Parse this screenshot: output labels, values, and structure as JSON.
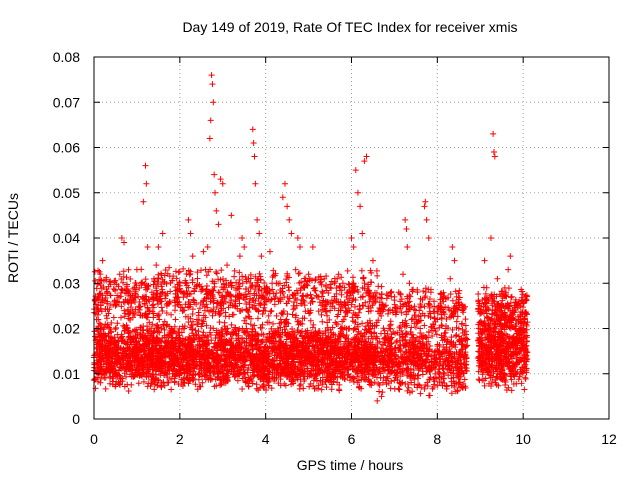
{
  "chart_data": {
    "type": "scatter",
    "title": "Day 149 of 2019, Rate Of TEC Index for receiver xmis",
    "xlabel": "GPS time / hours",
    "ylabel": "ROTI / TECUs",
    "xlim": [
      0,
      12
    ],
    "ylim": [
      0,
      0.08
    ],
    "xticks": [
      0,
      2,
      4,
      6,
      8,
      10,
      12
    ],
    "yticks": [
      0,
      0.01,
      0.02,
      0.03,
      0.04,
      0.05,
      0.06,
      0.07,
      0.08
    ],
    "xtick_labels": [
      "0",
      "2",
      "4",
      "6",
      "8",
      "10",
      "12"
    ],
    "ytick_labels": [
      "0",
      "0.01",
      "0.02",
      "0.03",
      "0.04",
      "0.05",
      "0.06",
      "0.07",
      "0.08"
    ],
    "grid": true,
    "marker": "+",
    "color": "#ff0000",
    "series": [
      {
        "name": "ROTI",
        "points": [
          [
            0.05,
            0.012
          ],
          [
            0.1,
            0.022
          ],
          [
            0.15,
            0.008
          ],
          [
            0.2,
            0.035
          ],
          [
            0.25,
            0.015
          ],
          [
            0.3,
            0.028
          ],
          [
            0.35,
            0.011
          ],
          [
            0.4,
            0.018
          ],
          [
            0.45,
            0.009
          ],
          [
            0.5,
            0.025
          ],
          [
            0.55,
            0.013
          ],
          [
            0.6,
            0.032
          ],
          [
            0.65,
            0.04
          ],
          [
            0.7,
            0.039
          ],
          [
            0.75,
            0.02
          ],
          [
            0.8,
            0.014
          ],
          [
            0.85,
            0.027
          ],
          [
            0.9,
            0.01
          ],
          [
            0.95,
            0.023
          ],
          [
            1.0,
            0.033
          ],
          [
            1.05,
            0.016
          ],
          [
            1.1,
            0.03
          ],
          [
            1.15,
            0.048
          ],
          [
            1.2,
            0.056
          ],
          [
            1.22,
            0.052
          ],
          [
            1.25,
            0.038
          ],
          [
            1.3,
            0.012
          ],
          [
            1.35,
            0.028
          ],
          [
            1.4,
            0.031
          ],
          [
            1.45,
            0.034
          ],
          [
            1.5,
            0.038
          ],
          [
            1.55,
            0.026
          ],
          [
            1.6,
            0.041
          ],
          [
            1.65,
            0.018
          ],
          [
            1.7,
            0.025
          ],
          [
            1.75,
            0.012
          ],
          [
            1.8,
            0.02
          ],
          [
            1.85,
            0.015
          ],
          [
            1.9,
            0.022
          ],
          [
            1.95,
            0.01
          ],
          [
            2.0,
            0.017
          ],
          [
            2.05,
            0.013
          ],
          [
            2.1,
            0.02
          ],
          [
            2.15,
            0.009
          ],
          [
            2.2,
            0.044
          ],
          [
            2.25,
            0.041
          ],
          [
            2.3,
            0.036
          ],
          [
            2.35,
            0.015
          ],
          [
            2.4,
            0.022
          ],
          [
            2.45,
            0.011
          ],
          [
            2.5,
            0.018
          ],
          [
            2.55,
            0.037
          ],
          [
            2.6,
            0.033
          ],
          [
            2.65,
            0.038
          ],
          [
            2.7,
            0.062
          ],
          [
            2.72,
            0.066
          ],
          [
            2.74,
            0.076
          ],
          [
            2.76,
            0.074
          ],
          [
            2.78,
            0.07
          ],
          [
            2.8,
            0.054
          ],
          [
            2.82,
            0.05
          ],
          [
            2.85,
            0.046
          ],
          [
            2.9,
            0.043
          ],
          [
            2.95,
            0.053
          ],
          [
            3.0,
            0.052
          ],
          [
            3.05,
            0.029
          ],
          [
            3.1,
            0.034
          ],
          [
            3.15,
            0.011
          ],
          [
            3.2,
            0.045
          ],
          [
            3.25,
            0.019
          ],
          [
            3.3,
            0.026
          ],
          [
            3.35,
            0.013
          ],
          [
            3.4,
            0.036
          ],
          [
            3.45,
            0.04
          ],
          [
            3.5,
            0.038
          ],
          [
            3.55,
            0.02
          ],
          [
            3.6,
            0.031
          ],
          [
            3.65,
            0.029
          ],
          [
            3.7,
            0.064
          ],
          [
            3.72,
            0.061
          ],
          [
            3.74,
            0.058
          ],
          [
            3.76,
            0.052
          ],
          [
            3.8,
            0.044
          ],
          [
            3.85,
            0.041
          ],
          [
            3.9,
            0.036
          ],
          [
            3.95,
            0.024
          ],
          [
            4.0,
            0.028
          ],
          [
            4.05,
            0.012
          ],
          [
            4.1,
            0.037
          ],
          [
            4.15,
            0.03
          ],
          [
            4.2,
            0.019
          ],
          [
            4.25,
            0.03
          ],
          [
            4.3,
            0.026
          ],
          [
            4.35,
            0.022
          ],
          [
            4.4,
            0.049
          ],
          [
            4.45,
            0.052
          ],
          [
            4.5,
            0.047
          ],
          [
            4.55,
            0.044
          ],
          [
            4.6,
            0.041
          ],
          [
            4.65,
            0.025
          ],
          [
            4.7,
            0.033
          ],
          [
            4.75,
            0.04
          ],
          [
            4.8,
            0.038
          ],
          [
            4.85,
            0.021
          ],
          [
            4.9,
            0.029
          ],
          [
            4.95,
            0.016
          ],
          [
            5.0,
            0.032
          ],
          [
            5.05,
            0.024
          ],
          [
            5.1,
            0.038
          ],
          [
            5.15,
            0.019
          ],
          [
            5.2,
            0.027
          ],
          [
            5.25,
            0.011
          ],
          [
            5.3,
            0.023
          ],
          [
            5.35,
            0.015
          ],
          [
            5.4,
            0.026
          ],
          [
            5.45,
            0.018
          ],
          [
            5.5,
            0.029
          ],
          [
            5.55,
            0.012
          ],
          [
            5.6,
            0.03
          ],
          [
            5.65,
            0.021
          ],
          [
            5.7,
            0.032
          ],
          [
            5.75,
            0.019
          ],
          [
            5.8,
            0.03
          ],
          [
            5.85,
            0.016
          ],
          [
            5.9,
            0.028
          ],
          [
            5.95,
            0.02
          ],
          [
            6.0,
            0.04
          ],
          [
            6.05,
            0.038
          ],
          [
            6.1,
            0.055
          ],
          [
            6.15,
            0.05
          ],
          [
            6.2,
            0.047
          ],
          [
            6.25,
            0.041
          ],
          [
            6.3,
            0.057
          ],
          [
            6.35,
            0.058
          ],
          [
            6.4,
            0.028
          ],
          [
            6.45,
            0.02
          ],
          [
            6.5,
            0.035
          ],
          [
            6.55,
            0.014
          ],
          [
            6.6,
            0.004
          ],
          [
            6.7,
            0.005
          ],
          [
            6.8,
            0.012
          ],
          [
            6.9,
            0.02
          ],
          [
            7.0,
            0.027
          ],
          [
            7.05,
            0.01
          ],
          [
            7.1,
            0.028
          ],
          [
            7.15,
            0.015
          ],
          [
            7.2,
            0.032
          ],
          [
            7.25,
            0.044
          ],
          [
            7.28,
            0.042
          ],
          [
            7.3,
            0.038
          ],
          [
            7.35,
            0.03
          ],
          [
            7.4,
            0.022
          ],
          [
            7.45,
            0.012
          ],
          [
            7.5,
            0.024
          ],
          [
            7.55,
            0.009
          ],
          [
            7.6,
            0.02
          ],
          [
            7.65,
            0.013
          ],
          [
            7.7,
            0.047
          ],
          [
            7.72,
            0.048
          ],
          [
            7.75,
            0.044
          ],
          [
            7.8,
            0.04
          ],
          [
            7.85,
            0.028
          ],
          [
            7.9,
            0.021
          ],
          [
            7.95,
            0.015
          ],
          [
            8.0,
            0.022
          ],
          [
            8.05,
            0.011
          ],
          [
            8.1,
            0.018
          ],
          [
            8.15,
            0.009
          ],
          [
            8.2,
            0.02
          ],
          [
            8.25,
            0.013
          ],
          [
            8.3,
            0.031
          ],
          [
            8.35,
            0.038
          ],
          [
            8.4,
            0.035
          ],
          [
            8.45,
            0.027
          ],
          [
            8.5,
            0.02
          ],
          [
            8.55,
            0.012
          ],
          [
            8.6,
            0.007
          ],
          [
            9.1,
            0.035
          ],
          [
            9.15,
            0.029
          ],
          [
            9.2,
            0.02
          ],
          [
            9.25,
            0.04
          ],
          [
            9.3,
            0.063
          ],
          [
            9.32,
            0.059
          ],
          [
            9.34,
            0.058
          ],
          [
            9.4,
            0.031
          ],
          [
            9.45,
            0.025
          ],
          [
            9.5,
            0.018
          ],
          [
            9.55,
            0.012
          ],
          [
            9.6,
            0.028
          ],
          [
            9.65,
            0.033
          ],
          [
            9.7,
            0.036
          ],
          [
            9.75,
            0.024
          ],
          [
            9.8,
            0.017
          ],
          [
            9.85,
            0.01
          ],
          [
            9.9,
            0.022
          ],
          [
            9.95,
            0.015
          ],
          [
            10.0,
            0.02
          ],
          [
            10.05,
            0.012
          ]
        ]
      }
    ],
    "dense_band": [
      {
        "x0": 0.0,
        "x1": 6.6,
        "y0": 0.006,
        "y1": 0.022,
        "count": 3200
      },
      {
        "x0": 6.6,
        "x1": 8.7,
        "y0": 0.005,
        "y1": 0.022,
        "count": 700
      },
      {
        "x0": 8.95,
        "x1": 10.1,
        "y0": 0.006,
        "y1": 0.025,
        "count": 650
      }
    ],
    "sparse_band": [
      {
        "x0": 0.0,
        "x1": 6.6,
        "y0": 0.02,
        "y1": 0.034,
        "count": 900
      },
      {
        "x0": 6.6,
        "x1": 8.7,
        "y0": 0.02,
        "y1": 0.03,
        "count": 200
      },
      {
        "x0": 8.95,
        "x1": 10.1,
        "y0": 0.02,
        "y1": 0.03,
        "count": 160
      }
    ]
  }
}
